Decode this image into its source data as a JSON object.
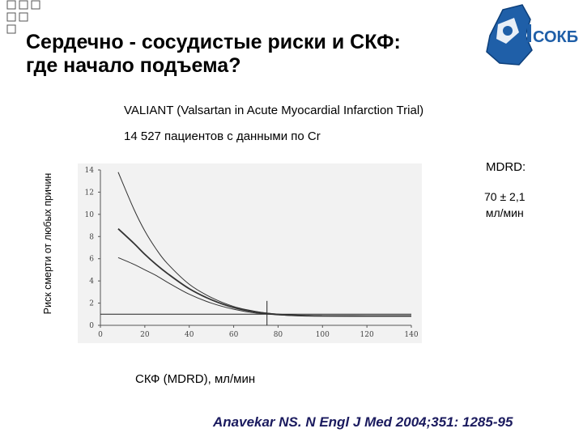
{
  "slide": {
    "title": "Сердечно - сосудистые риски и СКФ:\nгде начало подъема?",
    "subtitle1": "VALIANT (Valsartan in Acute Myocardial Infarction Trial)",
    "subtitle2": "14 527 пациентов с данными по Cr",
    "annotation_label": "MDRD:",
    "annotation_value_line1": "70 ± 2,1",
    "annotation_value_line2": "мл/мин",
    "citation": "Anavekar NS. N Engl J Med 2004;351: 1285-95",
    "logo_text": "СОКБ"
  },
  "chart_data": {
    "type": "line",
    "xlabel": "СКФ (MDRD), мл/мин",
    "ylabel": "Риск смерти от любых причин",
    "xlim": [
      0,
      140
    ],
    "ylim": [
      0,
      14
    ],
    "xticks": [
      0,
      20,
      40,
      60,
      80,
      100,
      120,
      140
    ],
    "yticks": [
      0,
      2,
      4,
      6,
      8,
      10,
      12,
      14
    ],
    "reference_line_y": 1,
    "vertical_marker_x": 75,
    "series": [
      {
        "x": [
          8,
          15,
          20,
          25,
          30,
          40,
          50,
          60,
          70,
          80,
          90,
          100,
          120,
          140
        ],
        "y": [
          13.8,
          10.5,
          8.5,
          6.9,
          5.6,
          3.7,
          2.5,
          1.7,
          1.25,
          1.0,
          0.9,
          0.87,
          0.85,
          0.85
        ]
      },
      {
        "x": [
          8,
          15,
          20,
          25,
          30,
          40,
          50,
          60,
          70,
          80,
          90,
          100,
          120,
          140
        ],
        "y": [
          8.7,
          7.4,
          6.4,
          5.5,
          4.7,
          3.3,
          2.3,
          1.6,
          1.2,
          0.98,
          0.88,
          0.85,
          0.84,
          0.84
        ]
      },
      {
        "x": [
          8,
          15,
          20,
          25,
          30,
          40,
          50,
          60,
          70,
          80,
          90,
          100,
          120,
          140
        ],
        "y": [
          6.1,
          5.5,
          5.0,
          4.5,
          3.9,
          2.8,
          2.0,
          1.45,
          1.1,
          0.94,
          0.86,
          0.83,
          0.82,
          0.82
        ]
      }
    ],
    "colors": {
      "curve": "#333333",
      "axis": "#555555",
      "background": "#f2f2f2"
    }
  }
}
